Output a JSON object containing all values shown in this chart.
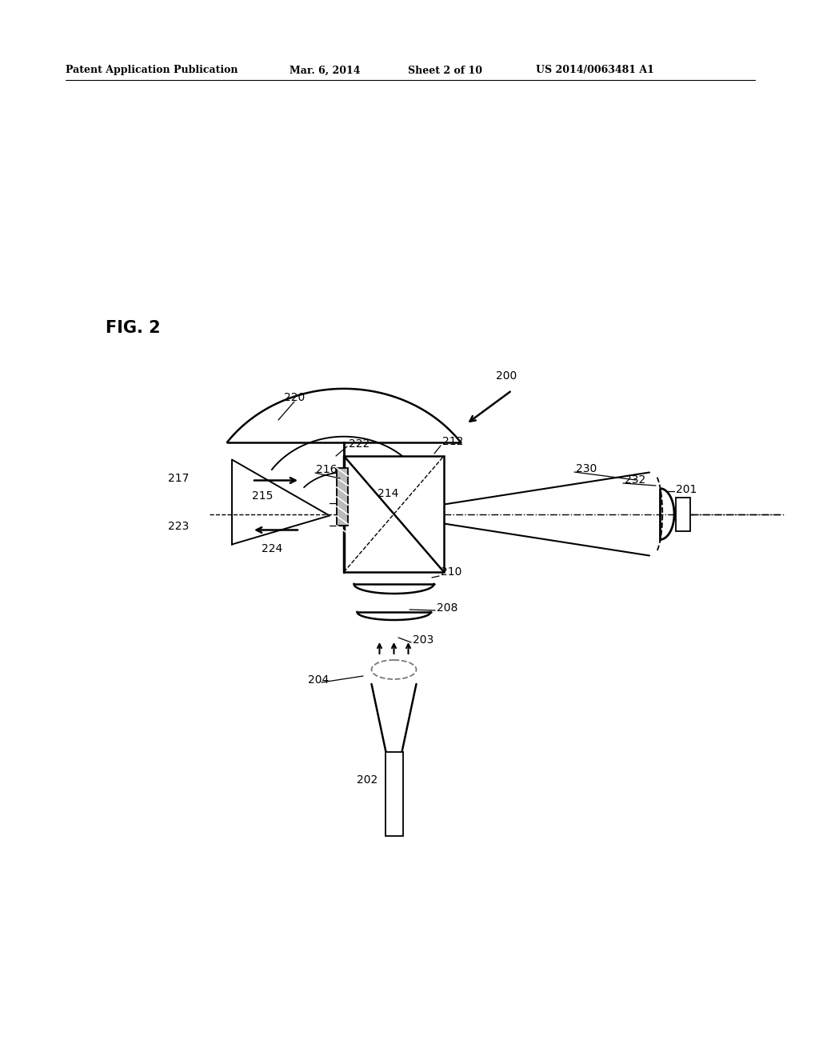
{
  "header_left": "Patent Application Publication",
  "header_mid": "Mar. 6, 2014  Sheet 2 of 10",
  "header_right": "US 2014/0063481 A1",
  "fig_label": "FIG. 2",
  "bg_color": "#ffffff",
  "lc": "#000000",
  "gc": "#777777"
}
